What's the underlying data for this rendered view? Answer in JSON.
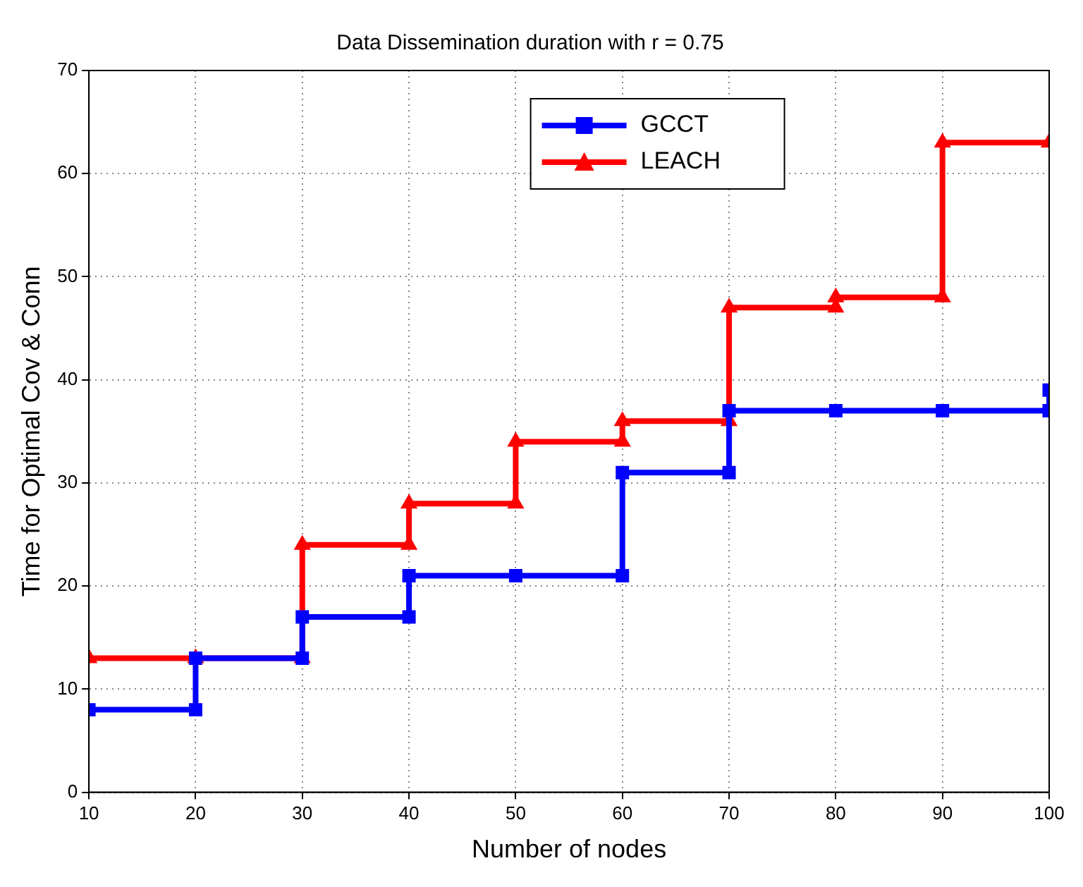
{
  "chart_data": {
    "type": "line",
    "title": "Data Dissemination duration with r = 0.75",
    "xlabel": "Number of nodes",
    "ylabel": "Time for Optimal Cov & Conn",
    "series": [
      {
        "name": "GCCT",
        "color": "#0000ff",
        "marker": "square",
        "x": [
          10,
          20,
          20,
          30,
          30,
          40,
          40,
          50,
          60,
          60,
          70,
          70,
          80,
          90,
          100,
          100
        ],
        "values": [
          8,
          8,
          13,
          13,
          17,
          17,
          21,
          21,
          21,
          31,
          31,
          37,
          37,
          37,
          37,
          39
        ]
      },
      {
        "name": "LEACH",
        "color": "#ff0000",
        "marker": "triangle",
        "x": [
          10,
          20,
          30,
          30,
          40,
          40,
          50,
          50,
          60,
          60,
          70,
          70,
          80,
          80,
          90,
          90,
          100
        ],
        "values": [
          13,
          13,
          13,
          24,
          24,
          28,
          28,
          34,
          34,
          36,
          36,
          47,
          47,
          48,
          48,
          63,
          63
        ]
      }
    ],
    "xlim": [
      10,
      100
    ],
    "xticks": [
      10,
      20,
      30,
      40,
      50,
      60,
      70,
      80,
      90,
      100
    ],
    "ylim": [
      0,
      70
    ],
    "yticks": [
      0,
      10,
      20,
      30,
      40,
      50,
      60,
      70
    ],
    "grid": true,
    "legend": "top",
    "line_style": "solid"
  }
}
